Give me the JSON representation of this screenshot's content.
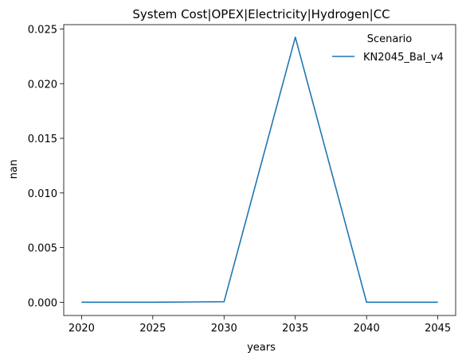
{
  "chart_data": {
    "type": "line",
    "title": "System Cost|OPEX|Electricity|Hydrogen|CC",
    "xlabel": "years",
    "ylabel": "nan",
    "x": [
      2020,
      2025,
      2030,
      2035,
      2040,
      2045
    ],
    "xticks": [
      "2020",
      "2025",
      "2030",
      "2035",
      "2040",
      "2045"
    ],
    "yticks": [
      "0.000",
      "0.005",
      "0.010",
      "0.015",
      "0.020",
      "0.025"
    ],
    "xlim": [
      2018.75,
      2046.25
    ],
    "ylim": [
      -0.00121,
      0.0254
    ],
    "series": [
      {
        "name": "KN2045_Bal_v4",
        "color": "#1f77b4",
        "values": [
          0.0,
          0.0,
          5e-05,
          0.02425,
          0.0,
          0.0
        ]
      }
    ],
    "legend": {
      "title": "Scenario",
      "position": "top-right"
    },
    "grid": false
  }
}
